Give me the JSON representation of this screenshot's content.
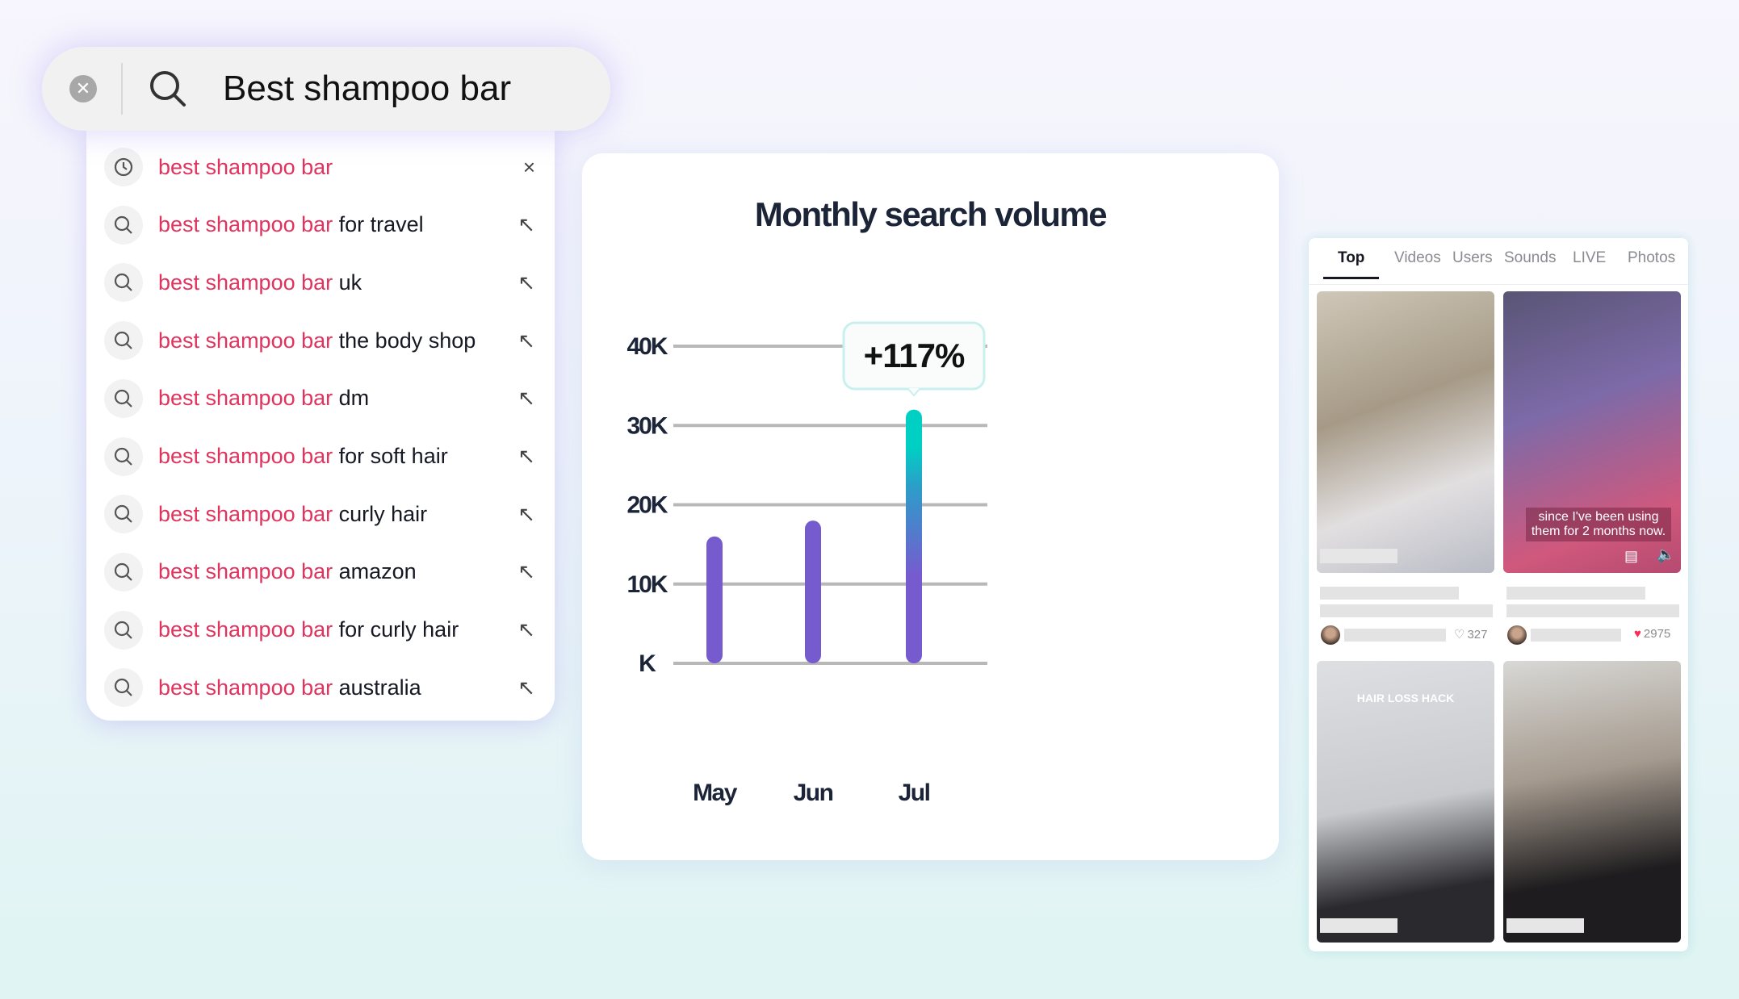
{
  "search": {
    "query": "Best shampoo bar",
    "clear_icon": "clear-icon",
    "search_icon": "search-icon"
  },
  "suggestions": [
    {
      "highlight": "best shampoo bar",
      "rest": "",
      "icon": "clock-icon",
      "action": "×",
      "action_icon": "remove-icon"
    },
    {
      "highlight": "best shampoo bar",
      "rest": " for travel",
      "icon": "search-icon",
      "action": "↖",
      "action_icon": "fill-arrow-icon"
    },
    {
      "highlight": "best shampoo bar",
      "rest": " uk",
      "icon": "search-icon",
      "action": "↖",
      "action_icon": "fill-arrow-icon"
    },
    {
      "highlight": "best shampoo bar",
      "rest": " the body shop",
      "icon": "search-icon",
      "action": "↖",
      "action_icon": "fill-arrow-icon"
    },
    {
      "highlight": "best shampoo bar",
      "rest": " dm",
      "icon": "search-icon",
      "action": "↖",
      "action_icon": "fill-arrow-icon"
    },
    {
      "highlight": "best shampoo bar",
      "rest": " for soft hair",
      "icon": "search-icon",
      "action": "↖",
      "action_icon": "fill-arrow-icon"
    },
    {
      "highlight": "best shampoo bar",
      "rest": " curly hair",
      "icon": "search-icon",
      "action": "↖",
      "action_icon": "fill-arrow-icon"
    },
    {
      "highlight": "best shampoo bar",
      "rest": " amazon",
      "icon": "search-icon",
      "action": "↖",
      "action_icon": "fill-arrow-icon"
    },
    {
      "highlight": "best shampoo bar",
      "rest": " for curly hair",
      "icon": "search-icon",
      "action": "↖",
      "action_icon": "fill-arrow-icon"
    },
    {
      "highlight": "best shampoo bar",
      "rest": " australia",
      "icon": "search-icon",
      "action": "↖",
      "action_icon": "fill-arrow-icon"
    }
  ],
  "colors": {
    "highlight": "#e0335e",
    "bar": "#765bcf",
    "bar_top": "#00cfc4",
    "like": "#fe2c55"
  },
  "chart_data": {
    "type": "bar",
    "title": "Monthly search volume",
    "categories": [
      "May",
      "Jun",
      "Jul"
    ],
    "values": [
      16000,
      18000,
      32000
    ],
    "yticks": [
      0,
      10000,
      20000,
      30000,
      40000
    ],
    "ytick_labels": [
      "K",
      "10K",
      "20K",
      "30K",
      "40K"
    ],
    "ylim": [
      0,
      40000
    ],
    "grid": true,
    "annotation": "+117%"
  },
  "results": {
    "tabs": [
      "Top",
      "Videos",
      "Users",
      "Sounds",
      "LIVE",
      "Photos"
    ],
    "active_tab": "Top",
    "videos": [
      {
        "caption": "",
        "likes": "327",
        "liked": false
      },
      {
        "caption": "since I've been using them for 2 months now.",
        "likes": "2975",
        "liked": true
      },
      {
        "caption": "HAIR LOSS HACK"
      },
      {
        "caption": ""
      }
    ]
  }
}
